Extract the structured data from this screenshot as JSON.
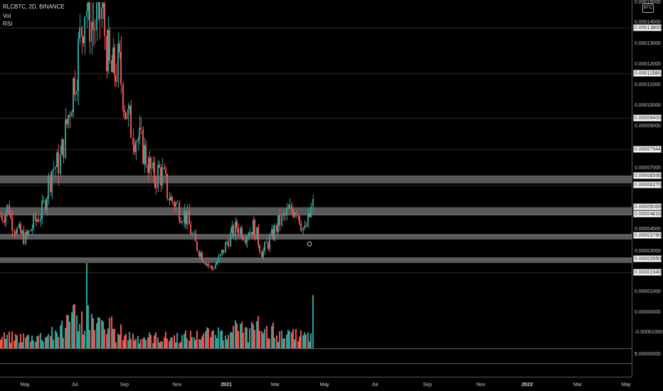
{
  "legend": {
    "title": "RLCBTC, 2D, BINANCE",
    "vol": "Vol",
    "rsi": "RSI"
  },
  "currency": "BTC",
  "colors": {
    "background": "#000000",
    "up": "#26a69a",
    "down": "#ef5350",
    "grid": "#2a2a2a",
    "zone": "#9e9e9e",
    "axis_text": "#c8c8c8"
  },
  "price_axis": {
    "ticks": [
      "0.00015000",
      "0.00014000",
      "0.00013000",
      "0.00012000",
      "0.00011000",
      "0.00010000",
      "0.00009000",
      "0.00007000",
      "0.00004000",
      "0.00003000"
    ],
    "marked_levels": [
      "0.00013800",
      "0.00011580",
      "0.00009400",
      "0.00007944",
      "0.00006595",
      "0.00006370",
      "0.00005069",
      "0.00004810",
      "0.00003760",
      "0.00002650",
      "0.00001940"
    ]
  },
  "volume_axis": {
    "ticks": [
      "0.00001000",
      "0.00000000",
      "-0.00001000"
    ]
  },
  "rsi_axis": {
    "ticks": [
      "5.00000000"
    ]
  },
  "time_axis": {
    "labels": [
      "May",
      "Jul",
      "Sep",
      "Nov",
      "2021",
      "Mar",
      "May",
      "Jul",
      "Sep",
      "Nov",
      "2022",
      "Mar",
      "May"
    ]
  },
  "chart_data": {
    "type": "candlestick",
    "symbol": "RLCBTC",
    "interval": "2D",
    "exchange": "BINANCE",
    "horizontal_levels": [
      0.000138,
      0.0001158,
      9.4e-05,
      7.944e-05,
      6.595e-05,
      6.37e-05,
      5.069e-05,
      4.81e-05,
      3.76e-05,
      2.65e-05,
      1.94e-05
    ],
    "zones": [
      [
        6.37e-05,
        6.595e-05
      ],
      [
        4.81e-05,
        5.069e-05
      ],
      [
        3.6e-05,
        3.76e-05
      ],
      [
        2.48e-05,
        2.65e-05
      ]
    ],
    "x_range": [
      "Apr 2020",
      "May 2022"
    ],
    "y_range": [
      1.94e-05,
      0.00015
    ],
    "price_path": [
      [
        4.7e-05,
        5.1e-05
      ],
      [
        4.7e-05,
        3.95e-05
      ],
      [
        3.95e-05,
        3.6e-05
      ],
      [
        3.6e-05,
        4.4e-05
      ],
      [
        4.4e-05,
        5e-05
      ],
      [
        5e-05,
        6.9e-05
      ],
      [
        6.9e-05,
        7.3e-05
      ],
      [
        7.3e-05,
        9.5e-05
      ],
      [
        9.5e-05,
        0.00012
      ],
      [
        0.00012,
        0.00015
      ],
      [
        0.00015,
        0.000138
      ],
      [
        0.000138,
        0.000146
      ],
      [
        0.000146,
        0.000115
      ],
      [
        0.000115,
        0.00012
      ],
      [
        0.00012,
        9.4e-05
      ],
      [
        9.4e-05,
        8.6e-05
      ],
      [
        8.6e-05,
        7.8e-05
      ],
      [
        7.8e-05,
        6.6e-05
      ],
      [
        6.6e-05,
        6.9e-05
      ],
      [
        6.9e-05,
        5.6e-05
      ],
      [
        5.6e-05,
        5.1e-05
      ],
      [
        5.1e-05,
        4.6e-05
      ],
      [
        4.6e-05,
        3.4e-05
      ],
      [
        3.4e-05,
        2.7e-05
      ],
      [
        2.7e-05,
        2.1e-05
      ],
      [
        2.1e-05,
        2.7e-05
      ],
      [
        2.7e-05,
        3.6e-05
      ],
      [
        3.6e-05,
        4.2e-05
      ],
      [
        4.2e-05,
        3.8e-05
      ],
      [
        3.8e-05,
        4.2e-05
      ],
      [
        4.2e-05,
        2.9e-05
      ],
      [
        2.9e-05,
        3.6e-05
      ],
      [
        3.6e-05,
        4.4e-05
      ],
      [
        4.4e-05,
        4.8e-05
      ],
      [
        4.8e-05,
        5.2e-05
      ],
      [
        5.2e-05,
        3.9e-05
      ],
      [
        3.9e-05,
        5.2e-05
      ]
    ]
  }
}
